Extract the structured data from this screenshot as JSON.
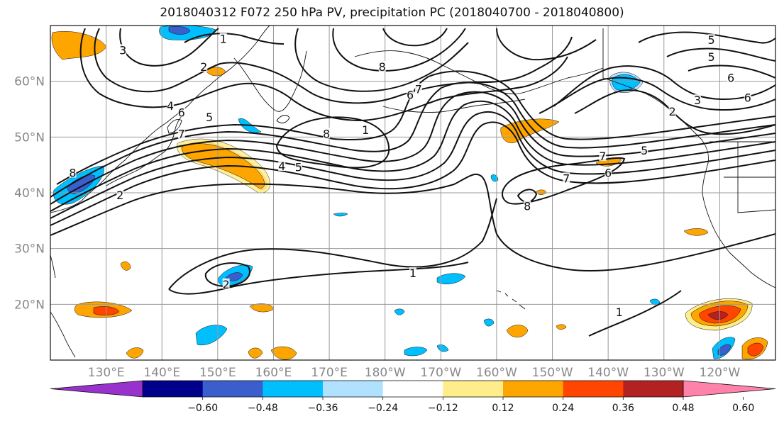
{
  "title": "2018040312 F072 250 hPa PV, precipitation PC (2018040700 - 2018040800)",
  "map": {
    "projection": "cylindrical",
    "lon_range": [
      120,
      250
    ],
    "lat_range": [
      10,
      70
    ],
    "grid": true,
    "lon_ticks": [
      {
        "lon": 130,
        "label": "130°E"
      },
      {
        "lon": 140,
        "label": "140°E"
      },
      {
        "lon": 150,
        "label": "150°E"
      },
      {
        "lon": 160,
        "label": "160°E"
      },
      {
        "lon": 170,
        "label": "170°E"
      },
      {
        "lon": 180,
        "label": "180°W"
      },
      {
        "lon": 190,
        "label": "170°W"
      },
      {
        "lon": 200,
        "label": "160°W"
      },
      {
        "lon": 210,
        "label": "150°W"
      },
      {
        "lon": 220,
        "label": "140°W"
      },
      {
        "lon": 230,
        "label": "130°W"
      },
      {
        "lon": 240,
        "label": "120°W"
      }
    ],
    "lat_ticks": [
      {
        "lat": 20,
        "label": "20°N"
      },
      {
        "lat": 30,
        "label": "30°N"
      },
      {
        "lat": 40,
        "label": "40°N"
      },
      {
        "lat": 50,
        "label": "50°N"
      },
      {
        "lat": 60,
        "label": "60°N"
      }
    ]
  },
  "colorbar": {
    "extend": "both",
    "colors": [
      "#9932cc",
      "#00008b",
      "#3a5fcd",
      "#00bfff",
      "#b0e2ff",
      "#ffffff",
      "#ffec8b",
      "#ffa500",
      "#ff4500",
      "#b22222",
      "#ff82ab"
    ],
    "labels": [
      "−0.60",
      "−0.48",
      "−0.36",
      "−0.24",
      "−0.12",
      "0.12",
      "0.24",
      "0.36",
      "0.48",
      "0.60"
    ]
  },
  "pv_contour_labels": [
    {
      "text": "1",
      "lon": 151,
      "lat": 67.5
    },
    {
      "text": "3",
      "lon": 133,
      "lat": 65.5
    },
    {
      "text": "2",
      "lon": 147.5,
      "lat": 62.5
    },
    {
      "text": "4",
      "lon": 141.5,
      "lat": 55.5
    },
    {
      "text": "6",
      "lon": 143.5,
      "lat": 54.3
    },
    {
      "text": "5",
      "lon": 148.5,
      "lat": 53.5
    },
    {
      "text": "7",
      "lon": 143.5,
      "lat": 50.5
    },
    {
      "text": "8",
      "lon": 124,
      "lat": 43.5
    },
    {
      "text": "2",
      "lon": 132.5,
      "lat": 39.5
    },
    {
      "text": "8",
      "lon": 169.5,
      "lat": 50.5
    },
    {
      "text": "4",
      "lon": 161.5,
      "lat": 44.7
    },
    {
      "text": "5",
      "lon": 164.5,
      "lat": 44.5
    },
    {
      "text": "1",
      "lon": 176.5,
      "lat": 51.2
    },
    {
      "text": "8",
      "lon": 179.5,
      "lat": 62.5
    },
    {
      "text": "7",
      "lon": 186,
      "lat": 58.5
    },
    {
      "text": "6",
      "lon": 184.5,
      "lat": 57.5
    },
    {
      "text": "8",
      "lon": 205.5,
      "lat": 37.5
    },
    {
      "text": "7",
      "lon": 212.5,
      "lat": 42.5
    },
    {
      "text": "7",
      "lon": 219,
      "lat": 46.5
    },
    {
      "text": "6",
      "lon": 220,
      "lat": 43.5
    },
    {
      "text": "5",
      "lon": 226.5,
      "lat": 47.5
    },
    {
      "text": "1",
      "lon": 185,
      "lat": 25.5
    },
    {
      "text": "2",
      "lon": 151.5,
      "lat": 23.5
    },
    {
      "text": "1",
      "lon": 222,
      "lat": 18.5
    },
    {
      "text": "5",
      "lon": 238.5,
      "lat": 67.3
    },
    {
      "text": "5",
      "lon": 238.5,
      "lat": 64.3
    },
    {
      "text": "6",
      "lon": 242,
      "lat": 60.5
    },
    {
      "text": "6",
      "lon": 245,
      "lat": 57
    },
    {
      "text": "3",
      "lon": 236,
      "lat": 56.5
    },
    {
      "text": "2",
      "lon": 231.5,
      "lat": 54.5
    }
  ]
}
